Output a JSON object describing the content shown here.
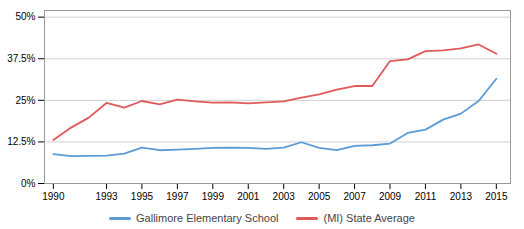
{
  "chart_data": {
    "type": "line",
    "x": [
      1990,
      1991,
      1992,
      1993,
      1994,
      1995,
      1996,
      1997,
      1998,
      1999,
      2000,
      2001,
      2002,
      2003,
      2004,
      2005,
      2006,
      2007,
      2008,
      2009,
      2010,
      2011,
      2012,
      2013,
      2014,
      2015
    ],
    "series": [
      {
        "name": "Gallimore Elementary School",
        "color": "#5b9bd5",
        "values": [
          0.088,
          0.082,
          0.083,
          0.084,
          0.09,
          0.108,
          0.1,
          0.102,
          0.104,
          0.107,
          0.108,
          0.107,
          0.104,
          0.108,
          0.124,
          0.107,
          0.1,
          0.113,
          0.115,
          0.12,
          0.152,
          0.162,
          0.192,
          0.21,
          0.248,
          0.315
        ]
      },
      {
        "name": "(MI) State Average",
        "color": "#e05a5a",
        "values": [
          0.131,
          0.168,
          0.198,
          0.242,
          0.228,
          0.248,
          0.238,
          0.252,
          0.247,
          0.243,
          0.244,
          0.241,
          0.244,
          0.247,
          0.258,
          0.268,
          0.282,
          0.293,
          0.293,
          0.368,
          0.373,
          0.398,
          0.4,
          0.406,
          0.418,
          0.39
        ]
      }
    ],
    "xlim": [
      1989.5,
      2015.8
    ],
    "xticks": [
      1990,
      1993,
      1995,
      1997,
      1999,
      2001,
      2003,
      2005,
      2007,
      2009,
      2011,
      2013,
      2015
    ],
    "ylim": [
      0.0,
      0.52
    ],
    "yticks": [
      {
        "value": 0.0,
        "label": "0%"
      },
      {
        "value": 0.125,
        "label": "12.5%"
      },
      {
        "value": 0.25,
        "label": "25%"
      },
      {
        "value": 0.375,
        "label": "37.5%"
      },
      {
        "value": 0.5,
        "label": "50%"
      }
    ],
    "grid": true,
    "legend": "bottom"
  }
}
